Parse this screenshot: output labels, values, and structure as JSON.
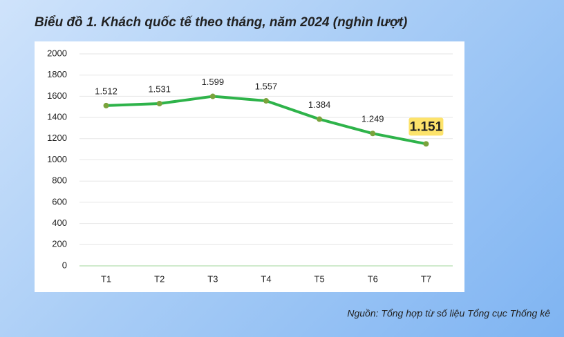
{
  "chart_data": {
    "type": "line",
    "title": "Biểu đồ 1. Khách quốc tế theo tháng, năm 2024 (nghìn lượt)",
    "source": "Nguồn: Tổng hợp từ số liệu Tổng cục Thống kê",
    "categories": [
      "T1",
      "T2",
      "T3",
      "T4",
      "T5",
      "T6",
      "T7"
    ],
    "values": [
      1512,
      1531,
      1599,
      1557,
      1384,
      1249,
      1151
    ],
    "value_labels": [
      "1.512",
      "1.531",
      "1.599",
      "1.557",
      "1.384",
      "1.249",
      "1.151"
    ],
    "color": "#2eb34a",
    "ylim": [
      0,
      2000
    ],
    "yticks": [
      0,
      200,
      400,
      600,
      800,
      1000,
      1200,
      1400,
      1600,
      1800,
      2000
    ],
    "grid": true
  }
}
